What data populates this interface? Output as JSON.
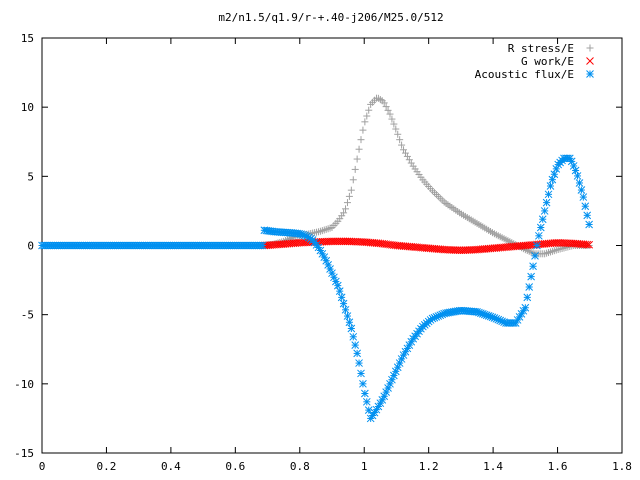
{
  "chart_data": {
    "type": "scatter",
    "title": "m2/n1.5/q1.9/r-+.40-j206/M25.0/512",
    "xlabel": "",
    "ylabel": "",
    "xlim": [
      0,
      1.8
    ],
    "ylim": [
      -15,
      15
    ],
    "xticks": [
      "0",
      "0.2",
      "0.4",
      "0.6",
      "0.8",
      "1",
      "1.2",
      "1.4",
      "1.6",
      "1.8"
    ],
    "yticks": [
      "-15",
      "-10",
      "-5",
      "0",
      "5",
      "10",
      "15"
    ],
    "grid": false,
    "legend_position": "top-right",
    "series": [
      {
        "name": "R stress/E",
        "marker": "+",
        "color": "#a0a0a0",
        "points": [
          [
            0.69,
            0.0
          ],
          [
            0.72,
            0.1
          ],
          [
            0.75,
            0.3
          ],
          [
            0.78,
            0.6
          ],
          [
            0.82,
            0.8
          ],
          [
            0.86,
            1.0
          ],
          [
            0.9,
            1.3
          ],
          [
            0.92,
            1.8
          ],
          [
            0.94,
            2.5
          ],
          [
            0.96,
            4.0
          ],
          [
            0.98,
            6.5
          ],
          [
            1.0,
            8.8
          ],
          [
            1.02,
            10.2
          ],
          [
            1.04,
            10.7
          ],
          [
            1.06,
            10.4
          ],
          [
            1.08,
            9.5
          ],
          [
            1.1,
            8.3
          ],
          [
            1.12,
            7.0
          ],
          [
            1.15,
            5.8
          ],
          [
            1.18,
            4.8
          ],
          [
            1.21,
            4.0
          ],
          [
            1.25,
            3.1
          ],
          [
            1.3,
            2.3
          ],
          [
            1.35,
            1.6
          ],
          [
            1.4,
            0.9
          ],
          [
            1.45,
            0.3
          ],
          [
            1.5,
            -0.3
          ],
          [
            1.53,
            -0.6
          ],
          [
            1.56,
            -0.6
          ],
          [
            1.6,
            -0.3
          ],
          [
            1.65,
            0.0
          ],
          [
            1.7,
            0.0
          ]
        ]
      },
      {
        "name": "G work/E",
        "marker": "x",
        "color": "#ff0000",
        "points": [
          [
            0.69,
            0.0
          ],
          [
            0.75,
            0.1
          ],
          [
            0.8,
            0.2
          ],
          [
            0.85,
            0.25
          ],
          [
            0.9,
            0.3
          ],
          [
            0.95,
            0.3
          ],
          [
            1.0,
            0.25
          ],
          [
            1.05,
            0.15
          ],
          [
            1.1,
            0.0
          ],
          [
            1.15,
            -0.1
          ],
          [
            1.2,
            -0.2
          ],
          [
            1.25,
            -0.3
          ],
          [
            1.3,
            -0.35
          ],
          [
            1.35,
            -0.3
          ],
          [
            1.4,
            -0.2
          ],
          [
            1.45,
            -0.1
          ],
          [
            1.5,
            0.0
          ],
          [
            1.55,
            0.1
          ],
          [
            1.6,
            0.2
          ],
          [
            1.65,
            0.15
          ],
          [
            1.7,
            0.05
          ]
        ]
      },
      {
        "name": "Acoustic flux/E",
        "marker": "*",
        "color": "#0090f0",
        "points": [
          [
            0.69,
            1.1
          ],
          [
            0.72,
            1.0
          ],
          [
            0.75,
            0.95
          ],
          [
            0.78,
            0.9
          ],
          [
            0.8,
            0.85
          ],
          [
            0.82,
            0.7
          ],
          [
            0.84,
            0.4
          ],
          [
            0.86,
            -0.2
          ],
          [
            0.88,
            -1.0
          ],
          [
            0.9,
            -2.0
          ],
          [
            0.92,
            -3.0
          ],
          [
            0.94,
            -4.5
          ],
          [
            0.96,
            -6.0
          ],
          [
            0.98,
            -8.0
          ],
          [
            1.0,
            -10.5
          ],
          [
            1.02,
            -12.5
          ],
          [
            1.04,
            -11.8
          ],
          [
            1.06,
            -11.0
          ],
          [
            1.08,
            -10.0
          ],
          [
            1.1,
            -9.0
          ],
          [
            1.12,
            -8.0
          ],
          [
            1.15,
            -6.8
          ],
          [
            1.18,
            -5.9
          ],
          [
            1.21,
            -5.3
          ],
          [
            1.25,
            -4.9
          ],
          [
            1.3,
            -4.7
          ],
          [
            1.35,
            -4.8
          ],
          [
            1.4,
            -5.2
          ],
          [
            1.44,
            -5.6
          ],
          [
            1.47,
            -5.6
          ],
          [
            1.5,
            -4.5
          ],
          [
            1.52,
            -2.0
          ],
          [
            1.54,
            0.5
          ],
          [
            1.56,
            2.5
          ],
          [
            1.58,
            4.5
          ],
          [
            1.6,
            5.8
          ],
          [
            1.62,
            6.3
          ],
          [
            1.64,
            6.3
          ],
          [
            1.66,
            5.2
          ],
          [
            1.68,
            3.5
          ],
          [
            1.7,
            1.3
          ]
        ]
      }
    ]
  }
}
